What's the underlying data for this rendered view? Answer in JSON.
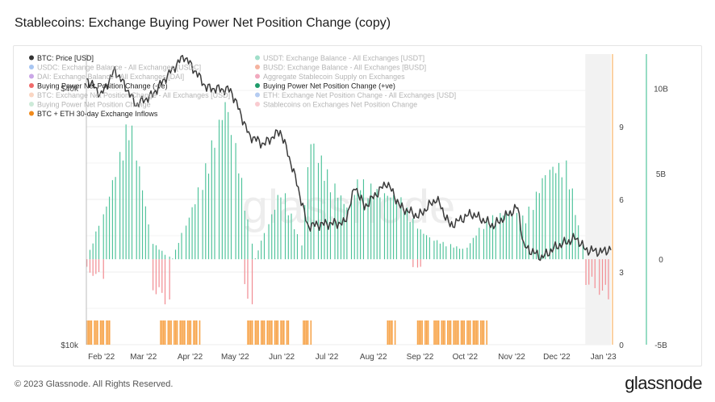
{
  "page": {
    "title": "Stablecoins: Exchange Buying Power Net Position Change (copy)",
    "copyright": "© 2023 Glassnode. All Rights Reserved.",
    "logo": "glassnode",
    "watermark": "glassnode"
  },
  "colors": {
    "price": "#3b3b3b",
    "positive": "#2fb88a",
    "positive_fill": "#bfe9d8",
    "negative": "#f07f86",
    "negative_fill": "#f7c3c6",
    "inflows": "#f7a44a",
    "grid": "#ececec",
    "axis_text": "#444444"
  },
  "legend": [
    {
      "label": "BTC: Price [USD]",
      "color": "#333333",
      "active": true
    },
    {
      "label": "USDT: Exchange Balance - All Exchanges [USDT]",
      "color": "#2fb88a",
      "active": false
    },
    {
      "label": "USDC: Exchange Balance - All Exchanges [USDC]",
      "color": "#3b7fe0",
      "active": false
    },
    {
      "label": "BUSD: Exchange Balance - All Exchanges [BUSD]",
      "color": "#e8562a",
      "active": false
    },
    {
      "label": "DAI: Exchange Balance - All Exchanges [DAI]",
      "color": "#8a3cc9",
      "active": false
    },
    {
      "label": "Aggregate Stablecoin Supply on Exchanges",
      "color": "#e0406e",
      "active": false
    },
    {
      "label": "Buying Power Net Position Change (-ve)",
      "color": "#f06a6a",
      "active": true
    },
    {
      "label": "Buying Power Net Position Change (+ve)",
      "color": "#1f9c6a",
      "active": true
    },
    {
      "label": "BTC: Exchange Net Position Change - All Exchanges [USD]",
      "color": "#f3a37a",
      "active": false
    },
    {
      "label": "ETH: Exchange Net Position Change - All Exchanges [USD]",
      "color": "#5b8de0",
      "active": false
    },
    {
      "label": "Buying Power Net Position Change",
      "color": "#8fd0a8",
      "active": false
    },
    {
      "label": "Stablecoins on Exchanges Net Position Change",
      "color": "#f28b96",
      "active": false
    },
    {
      "label": "BTC + ETH 30-day Exchange Inflows",
      "color": "#f08a1c",
      "active": true
    }
  ],
  "chart_data": {
    "type": "line",
    "title": "Stablecoins: Exchange Buying Power Net Position Change (copy)",
    "x_range": [
      "2022-01-22",
      "2023-01-06"
    ],
    "x_ticks": [
      "Feb '22",
      "Mar '22",
      "Apr '22",
      "May '22",
      "Jun '22",
      "Jul '22",
      "Aug '22",
      "Sep '22",
      "Oct '22",
      "Nov '22",
      "Dec '22",
      "Jan '23"
    ],
    "left_axis": {
      "scale": "log",
      "ticks": [
        "$40k",
        "$10k"
      ],
      "ylim": [
        10000,
        48000
      ]
    },
    "mid_axis": {
      "ticks": [
        "9",
        "6",
        "3",
        "0"
      ],
      "ylim": [
        0,
        12
      ]
    },
    "right_axis": {
      "ticks": [
        "10B",
        "5B",
        "0",
        "-5B"
      ],
      "ylim": [
        -5000000000,
        12000000000
      ]
    },
    "series": [
      {
        "name": "BTC: Price [USD]",
        "axis": "left",
        "x": [
          "2022-01-22",
          "2022-02-01",
          "2022-02-10",
          "2022-02-24",
          "2022-03-07",
          "2022-03-28",
          "2022-04-12",
          "2022-04-28",
          "2022-05-10",
          "2022-05-20",
          "2022-05-31",
          "2022-06-13",
          "2022-06-18",
          "2022-06-30",
          "2022-07-13",
          "2022-07-20",
          "2022-07-26",
          "2022-08-10",
          "2022-08-19",
          "2022-08-31",
          "2022-09-12",
          "2022-09-21",
          "2022-10-05",
          "2022-10-20",
          "2022-11-05",
          "2022-11-09",
          "2022-11-21",
          "2022-12-01",
          "2022-12-14",
          "2022-12-20",
          "2022-12-31",
          "2023-01-06"
        ],
        "values": [
          42000,
          38500,
          44000,
          36500,
          38500,
          47500,
          40000,
          39500,
          31000,
          29500,
          31700,
          22500,
          19000,
          19200,
          19300,
          23500,
          21000,
          24000,
          21000,
          20000,
          22000,
          19000,
          20300,
          19000,
          21000,
          17000,
          16000,
          17000,
          17800,
          16700,
          16500,
          16800
        ]
      },
      {
        "name": "Buying Power Net Position Change (+ve)",
        "axis": "right",
        "x": [
          "2022-01-22",
          "2022-02-05",
          "2022-02-20",
          "2022-03-07",
          "2022-03-20",
          "2022-04-06",
          "2022-04-25",
          "2022-05-05",
          "2022-05-14",
          "2022-06-01",
          "2022-06-14",
          "2022-06-20",
          "2022-07-05",
          "2022-07-15",
          "2022-07-22",
          "2022-08-05",
          "2022-08-18",
          "2022-09-01",
          "2022-09-10",
          "2022-10-01",
          "2022-10-15",
          "2022-10-30",
          "2022-11-10",
          "2022-11-25",
          "2022-12-08",
          "2022-12-15",
          "2022-12-20"
        ],
        "values": [
          0,
          3500000000,
          8800000000,
          1000000000,
          0,
          4000000000,
          9900000000,
          5000000000,
          0,
          4400000000,
          900000000,
          7500000000,
          4600000000,
          3200000000,
          4900000000,
          4100000000,
          3800000000,
          1800000000,
          1200000000,
          600000000,
          2400000000,
          3000000000,
          2500000000,
          5600000000,
          5800000000,
          2400000000,
          0
        ]
      },
      {
        "name": "Buying Power Net Position Change (-ve)",
        "axis": "right",
        "x": [
          "2022-01-22",
          "2022-02-01",
          "2022-03-05",
          "2022-03-15",
          "2022-05-05",
          "2022-05-10",
          "2022-05-20",
          "2022-08-25",
          "2022-09-01",
          "2022-12-20",
          "2023-01-06"
        ],
        "values": [
          -800000000,
          -1200000000,
          -1700000000,
          -2700000000,
          -500000000,
          -3300000000,
          -300000000,
          -300000000,
          -700000000,
          -1500000000,
          -2600000000
        ]
      },
      {
        "name": "BTC + ETH 30-day Exchange Inflows",
        "axis": "mid",
        "x_spans": [
          [
            "2022-01-22",
            "2022-02-07"
          ],
          [
            "2022-03-12",
            "2022-04-07"
          ],
          [
            "2022-05-09",
            "2022-06-06"
          ],
          [
            "2022-06-15",
            "2022-06-21"
          ],
          [
            "2022-08-10",
            "2022-08-16"
          ],
          [
            "2022-08-30",
            "2022-09-08"
          ],
          [
            "2022-09-10",
            "2022-10-16"
          ]
        ],
        "value": 1
      }
    ],
    "grid": true,
    "legend_position": "top-left"
  }
}
